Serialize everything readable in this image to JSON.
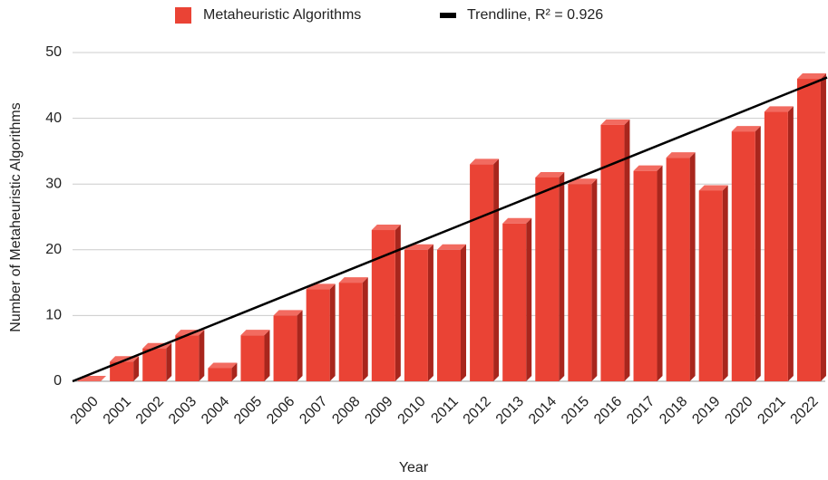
{
  "chart_data": {
    "type": "bar",
    "categories": [
      "2000",
      "2001",
      "2002",
      "2003",
      "2004",
      "2005",
      "2006",
      "2007",
      "2008",
      "2009",
      "2010",
      "2011",
      "2012",
      "2013",
      "2014",
      "2015",
      "2016",
      "2017",
      "2018",
      "2019",
      "2020",
      "2021",
      "2022"
    ],
    "series": [
      {
        "name": "Metaheuristic Algorithms",
        "color": "#ea4335",
        "values": [
          0,
          3,
          5,
          7,
          2,
          7,
          10,
          14,
          15,
          23,
          20,
          20,
          33,
          24,
          31,
          30,
          39,
          32,
          34,
          29,
          38,
          41,
          46
        ]
      }
    ],
    "trendline": {
      "name": "Trendline, R² = 0.926",
      "color": "#000000",
      "values": [
        0,
        46.2
      ]
    },
    "xlabel": "Year",
    "ylabel": "Number of Metaheuristic Algorithms",
    "ylim": [
      0,
      50
    ],
    "yticks": [
      0,
      10,
      20,
      30,
      40,
      50
    ],
    "grid": true,
    "legend": "top"
  }
}
